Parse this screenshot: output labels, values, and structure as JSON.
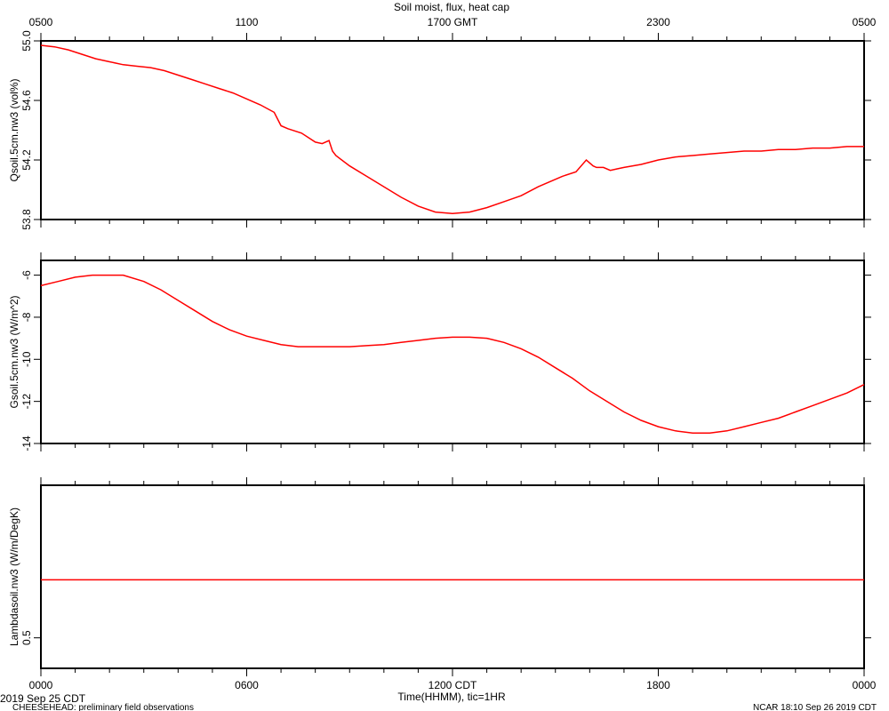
{
  "header": {
    "title": "Soil moist, flux, heat cap"
  },
  "top_axis": {
    "labels": [
      "0500",
      "1100",
      "1700 GMT",
      "2300",
      "0500"
    ],
    "positions": [
      0,
      6,
      12,
      18,
      24
    ]
  },
  "bottom_axis": {
    "labels": [
      "0000",
      "0600",
      "1200 CDT",
      "1800",
      "0000"
    ],
    "positions": [
      0,
      6,
      12,
      18,
      24
    ],
    "title": "Time(HHMM), tic=1HR"
  },
  "footer": {
    "date": "2019 Sep 25 CDT",
    "project": "CHEESEHEAD: preliminary field observations",
    "stamp": "NCAR 18:10 Sep 26 2019 CDT"
  },
  "colors": {
    "series": "#ff0000",
    "axes": "#000000",
    "background": "#ffffff"
  },
  "chart_data": [
    {
      "type": "line",
      "ylabel": "Qsoil.5cm.nw3 (vol%)",
      "ylim": [
        53.8,
        55.0
      ],
      "yticks": [
        53.8,
        54.2,
        54.6,
        55.0
      ],
      "yticklabels": [
        "53.8",
        "54.2",
        "54.6",
        "55.0"
      ],
      "xlim": [
        0,
        24
      ],
      "series": [
        {
          "x": [
            0,
            0.4,
            0.8,
            1.2,
            1.6,
            2.0,
            2.4,
            2.8,
            3.2,
            3.6,
            4.0,
            4.4,
            4.8,
            5.2,
            5.6,
            6.0,
            6.4,
            6.8,
            7.0,
            7.2,
            7.6,
            8.0,
            8.2,
            8.4,
            8.5,
            8.6,
            9.0,
            9.5,
            10.0,
            10.5,
            11.0,
            11.5,
            12.0,
            12.5,
            13.0,
            13.5,
            14.0,
            14.5,
            14.9,
            15.2,
            15.6,
            15.9,
            16.1,
            16.2,
            16.4,
            16.6,
            16.8,
            17.0,
            17.5,
            18.0,
            18.5,
            19.0,
            19.5,
            20.0,
            20.5,
            21.0,
            21.5,
            22.0,
            22.5,
            23.0,
            23.5,
            24.0
          ],
          "y": [
            54.97,
            54.96,
            54.94,
            54.91,
            54.88,
            54.86,
            54.84,
            54.83,
            54.82,
            54.8,
            54.77,
            54.74,
            54.71,
            54.68,
            54.65,
            54.61,
            54.57,
            54.52,
            54.43,
            54.41,
            54.38,
            54.32,
            54.31,
            54.33,
            54.26,
            54.23,
            54.16,
            54.09,
            54.02,
            53.95,
            53.89,
            53.85,
            53.84,
            53.85,
            53.88,
            53.92,
            53.96,
            54.02,
            54.06,
            54.09,
            54.12,
            54.2,
            54.16,
            54.15,
            54.15,
            54.13,
            54.14,
            54.15,
            54.17,
            54.2,
            54.22,
            54.23,
            54.24,
            54.25,
            54.26,
            54.26,
            54.27,
            54.27,
            54.28,
            54.28,
            54.29,
            54.29
          ]
        }
      ]
    },
    {
      "type": "line",
      "ylabel": "Gsoil.5cm.nw3 (W/m^2)",
      "ylim": [
        -14,
        -5.3
      ],
      "yticks": [
        -14,
        -12,
        -10,
        -8,
        -6
      ],
      "yticklabels": [
        "-14",
        "-12",
        "-10",
        "-8",
        "-6"
      ],
      "xlim": [
        0,
        24
      ],
      "series": [
        {
          "x": [
            0,
            0.5,
            1.0,
            1.5,
            2.0,
            2.4,
            3.0,
            3.5,
            4.0,
            4.5,
            5.0,
            5.5,
            6.0,
            6.5,
            7.0,
            7.5,
            8.0,
            8.5,
            9.0,
            9.5,
            10.0,
            10.5,
            11.0,
            11.5,
            12.0,
            12.5,
            13.0,
            13.5,
            14.0,
            14.5,
            15.0,
            15.5,
            16.0,
            16.5,
            17.0,
            17.5,
            18.0,
            18.5,
            19.0,
            19.5,
            20.0,
            20.5,
            21.0,
            21.5,
            22.0,
            22.5,
            23.0,
            23.5,
            24.0
          ],
          "y": [
            -6.5,
            -6.3,
            -6.1,
            -6.0,
            -6.0,
            -6.0,
            -6.3,
            -6.7,
            -7.2,
            -7.7,
            -8.2,
            -8.6,
            -8.9,
            -9.1,
            -9.3,
            -9.4,
            -9.4,
            -9.4,
            -9.4,
            -9.35,
            -9.3,
            -9.2,
            -9.1,
            -9.0,
            -8.95,
            -8.95,
            -9.0,
            -9.2,
            -9.5,
            -9.9,
            -10.4,
            -10.9,
            -11.5,
            -12.0,
            -12.5,
            -12.9,
            -13.2,
            -13.4,
            -13.5,
            -13.5,
            -13.4,
            -13.2,
            -13.0,
            -12.8,
            -12.5,
            -12.2,
            -11.9,
            -11.6,
            -11.2
          ]
        }
      ]
    },
    {
      "type": "line",
      "ylabel": "Lambdasoil.nw3 (W/m/DegK)",
      "ylim": [
        0.4,
        1.0
      ],
      "yticks": [
        0.5
      ],
      "yticklabels": [
        "0.5"
      ],
      "xlim": [
        0,
        24
      ],
      "series": [
        {
          "x": [
            0,
            24
          ],
          "y": [
            0.69,
            0.69
          ]
        }
      ]
    }
  ]
}
